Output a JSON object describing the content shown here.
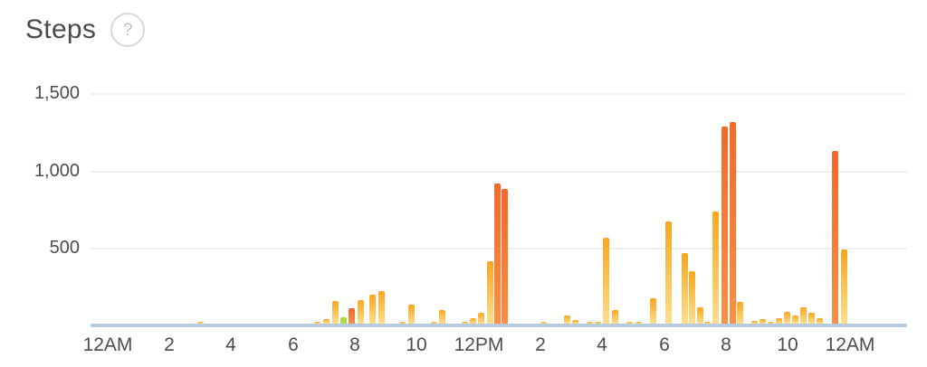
{
  "header": {
    "title": "Steps",
    "help_icon": "?"
  },
  "colors": {
    "title_text": "#4a4a4a",
    "axis_text": "#4d4d4d",
    "gridline": "#efefef",
    "baseline": "#b7cbdf",
    "yellow_top": "#f9a61f",
    "yellow_bottom": "#fdde8d",
    "orange_top": "#f3692a",
    "orange_bottom": "#f89045",
    "green_top": "#a6d435",
    "green_bottom": "#b4dc52"
  },
  "chart_data": {
    "type": "bar",
    "title": "Steps",
    "xlabel": "",
    "ylabel": "",
    "interval_minutes": 15,
    "ylim": [
      0,
      1500
    ],
    "grid": true,
    "legend": "none",
    "y_ticks": [
      {
        "value": 1500,
        "label": "1,500"
      },
      {
        "value": 1000,
        "label": "1,000"
      },
      {
        "value": 500,
        "label": "500"
      }
    ],
    "x_ticks": [
      {
        "hour": 0,
        "label": "12AM"
      },
      {
        "hour": 2,
        "label": "2"
      },
      {
        "hour": 4,
        "label": "4"
      },
      {
        "hour": 6,
        "label": "6"
      },
      {
        "hour": 8,
        "label": "8"
      },
      {
        "hour": 10,
        "label": "10"
      },
      {
        "hour": 12,
        "label": "12PM"
      },
      {
        "hour": 14,
        "label": "2"
      },
      {
        "hour": 16,
        "label": "4"
      },
      {
        "hour": 18,
        "label": "6"
      },
      {
        "hour": 20,
        "label": "8"
      },
      {
        "hour": 22,
        "label": "10"
      },
      {
        "hour": 24,
        "label": "12AM"
      }
    ],
    "bars": [
      {
        "h": 3.01,
        "steps": 15,
        "color": "yellow"
      },
      {
        "h": 6.79,
        "steps": 20,
        "color": "yellow"
      },
      {
        "h": 7.08,
        "steps": 45,
        "color": "yellow"
      },
      {
        "h": 7.37,
        "steps": 165,
        "color": "yellow"
      },
      {
        "h": 7.64,
        "steps": 60,
        "color": "green"
      },
      {
        "h": 7.9,
        "steps": 115,
        "color": "orange"
      },
      {
        "h": 8.19,
        "steps": 170,
        "color": "yellow"
      },
      {
        "h": 8.57,
        "steps": 205,
        "color": "yellow"
      },
      {
        "h": 8.86,
        "steps": 230,
        "color": "yellow"
      },
      {
        "h": 9.54,
        "steps": 30,
        "color": "yellow"
      },
      {
        "h": 9.83,
        "steps": 140,
        "color": "yellow"
      },
      {
        "h": 10.56,
        "steps": 20,
        "color": "yellow"
      },
      {
        "h": 10.82,
        "steps": 105,
        "color": "yellow"
      },
      {
        "h": 11.56,
        "steps": 20,
        "color": "yellow"
      },
      {
        "h": 11.82,
        "steps": 50,
        "color": "yellow"
      },
      {
        "h": 12.08,
        "steps": 85,
        "color": "yellow"
      },
      {
        "h": 12.37,
        "steps": 420,
        "color": "yellow"
      },
      {
        "h": 12.61,
        "steps": 920,
        "color": "orange"
      },
      {
        "h": 12.84,
        "steps": 885,
        "color": "orange"
      },
      {
        "h": 14.1,
        "steps": 30,
        "color": "yellow"
      },
      {
        "h": 14.86,
        "steps": 70,
        "color": "yellow"
      },
      {
        "h": 15.13,
        "steps": 40,
        "color": "yellow"
      },
      {
        "h": 15.59,
        "steps": 25,
        "color": "yellow"
      },
      {
        "h": 15.86,
        "steps": 15,
        "color": "yellow"
      },
      {
        "h": 16.12,
        "steps": 570,
        "color": "yellow"
      },
      {
        "h": 16.41,
        "steps": 105,
        "color": "yellow"
      },
      {
        "h": 16.88,
        "steps": 30,
        "color": "yellow"
      },
      {
        "h": 17.17,
        "steps": 15,
        "color": "yellow"
      },
      {
        "h": 17.64,
        "steps": 180,
        "color": "yellow"
      },
      {
        "h": 18.14,
        "steps": 675,
        "color": "yellow"
      },
      {
        "h": 18.67,
        "steps": 475,
        "color": "yellow"
      },
      {
        "h": 18.9,
        "steps": 355,
        "color": "yellow"
      },
      {
        "h": 19.16,
        "steps": 120,
        "color": "yellow"
      },
      {
        "h": 19.4,
        "steps": 20,
        "color": "yellow"
      },
      {
        "h": 19.66,
        "steps": 740,
        "color": "yellow"
      },
      {
        "h": 19.95,
        "steps": 1290,
        "color": "orange"
      },
      {
        "h": 20.22,
        "steps": 1320,
        "color": "orange"
      },
      {
        "h": 20.45,
        "steps": 160,
        "color": "yellow"
      },
      {
        "h": 20.92,
        "steps": 35,
        "color": "yellow"
      },
      {
        "h": 21.18,
        "steps": 45,
        "color": "yellow"
      },
      {
        "h": 21.45,
        "steps": 10,
        "color": "yellow"
      },
      {
        "h": 21.71,
        "steps": 50,
        "color": "yellow"
      },
      {
        "h": 21.97,
        "steps": 95,
        "color": "yellow"
      },
      {
        "h": 22.24,
        "steps": 70,
        "color": "yellow"
      },
      {
        "h": 22.5,
        "steps": 120,
        "color": "yellow"
      },
      {
        "h": 22.76,
        "steps": 90,
        "color": "yellow"
      },
      {
        "h": 23.02,
        "steps": 55,
        "color": "yellow"
      },
      {
        "h": 23.52,
        "steps": 1130,
        "color": "orange"
      },
      {
        "h": 23.82,
        "steps": 495,
        "color": "yellow"
      }
    ]
  }
}
